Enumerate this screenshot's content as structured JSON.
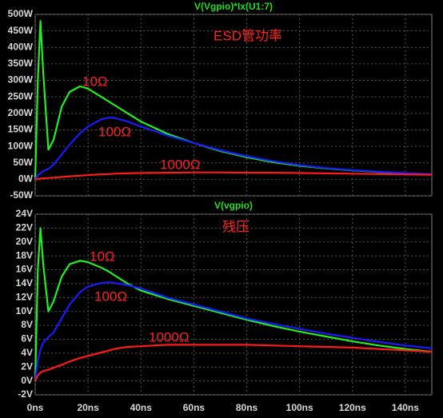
{
  "chart_data": [
    {
      "type": "line",
      "title": "V(Vgpio)*Ix(U1:7)",
      "title_color": "#22dd22",
      "annotations": [
        "ESD管功率"
      ],
      "annotation_color": "#ff2020",
      "x": [
        0,
        1,
        2,
        3,
        5,
        7,
        10,
        13,
        17,
        20,
        25,
        28,
        30,
        35,
        40,
        50,
        60,
        70,
        80,
        90,
        100,
        110,
        120,
        130,
        140,
        150
      ],
      "xlim": [
        0,
        150
      ],
      "ylim": [
        -50,
        500
      ],
      "yticks": [
        {
          "value": -50,
          "label": "-50W"
        },
        {
          "value": 0,
          "label": "0W"
        },
        {
          "value": 50,
          "label": "50W"
        },
        {
          "value": 100,
          "label": "100W"
        },
        {
          "value": 150,
          "label": "150W"
        },
        {
          "value": 200,
          "label": "200W"
        },
        {
          "value": 250,
          "label": "250W"
        },
        {
          "value": 300,
          "label": "300W"
        },
        {
          "value": 350,
          "label": "350W"
        },
        {
          "value": 400,
          "label": "400W"
        },
        {
          "value": 450,
          "label": "450W"
        },
        {
          "value": 500,
          "label": "500W"
        }
      ],
      "grid": true,
      "series": [
        {
          "name": "10Ω",
          "color": "#22ee22",
          "label_color": "#ff2020",
          "values": [
            0,
            300,
            480,
            330,
            90,
            120,
            220,
            265,
            282,
            275,
            250,
            235,
            225,
            200,
            175,
            138,
            110,
            86,
            67,
            52,
            41,
            33,
            27,
            22,
            18,
            15
          ]
        },
        {
          "name": "100Ω",
          "color": "#1a1aff",
          "label_color": "#ff2020",
          "values": [
            0,
            12,
            18,
            25,
            32,
            45,
            75,
            105,
            140,
            160,
            182,
            187,
            186,
            175,
            160,
            133,
            110,
            88,
            70,
            55,
            43,
            34,
            28,
            23,
            19,
            16
          ]
        },
        {
          "name": "1000Ω",
          "color": "#ff1a1a",
          "label_color": "#ff2020",
          "values": [
            0,
            1,
            2,
            3,
            4,
            5,
            7,
            9,
            11,
            13,
            15,
            16,
            17,
            18,
            19,
            20,
            21,
            21,
            20,
            20,
            19,
            18,
            17,
            16,
            15,
            14
          ]
        }
      ]
    },
    {
      "type": "line",
      "title": "V(vgpio)",
      "title_color": "#22dd22",
      "annotations": [
        "残压"
      ],
      "annotation_color": "#ff2020",
      "x": [
        0,
        1,
        2,
        3,
        5,
        7,
        10,
        13,
        17,
        20,
        25,
        28,
        30,
        35,
        40,
        50,
        60,
        70,
        80,
        90,
        100,
        110,
        120,
        130,
        140,
        150
      ],
      "xlim": [
        0,
        150
      ],
      "xticks": [
        {
          "value": 0,
          "label": "0ns"
        },
        {
          "value": 20,
          "label": "20ns"
        },
        {
          "value": 40,
          "label": "40ns"
        },
        {
          "value": 60,
          "label": "60ns"
        },
        {
          "value": 80,
          "label": "80ns"
        },
        {
          "value": 100,
          "label": "100ns"
        },
        {
          "value": 120,
          "label": "120ns"
        },
        {
          "value": 140,
          "label": "140ns"
        }
      ],
      "ylim": [
        -2,
        24
      ],
      "yticks": [
        {
          "value": -2,
          "label": "-2V"
        },
        {
          "value": 0,
          "label": "0V"
        },
        {
          "value": 2,
          "label": "2V"
        },
        {
          "value": 4,
          "label": "4V"
        },
        {
          "value": 6,
          "label": "6V"
        },
        {
          "value": 8,
          "label": "8V"
        },
        {
          "value": 10,
          "label": "10V"
        },
        {
          "value": 12,
          "label": "12V"
        },
        {
          "value": 14,
          "label": "14V"
        },
        {
          "value": 16,
          "label": "16V"
        },
        {
          "value": 18,
          "label": "18V"
        },
        {
          "value": 20,
          "label": "20V"
        },
        {
          "value": 22,
          "label": "22V"
        },
        {
          "value": 24,
          "label": "24V"
        }
      ],
      "grid": true,
      "series": [
        {
          "name": "10Ω",
          "color": "#22ee22",
          "label_color": "#ff2020",
          "values": [
            0,
            16,
            22,
            17,
            10,
            11.5,
            15,
            16.8,
            17.3,
            17.1,
            16.3,
            15.7,
            15.2,
            14,
            13,
            11.8,
            10.8,
            9.8,
            8.8,
            7.9,
            7.1,
            6.4,
            5.7,
            5.1,
            4.6,
            4.2
          ]
        },
        {
          "name": "100Ω",
          "color": "#1a1aff",
          "label_color": "#ff2020",
          "values": [
            0,
            3,
            4.5,
            5.5,
            6.3,
            7,
            9,
            11,
            12.8,
            13.6,
            14.1,
            14.2,
            14.1,
            13.8,
            13.3,
            12,
            11,
            10,
            9,
            8.2,
            7.5,
            6.8,
            6.2,
            5.6,
            5.1,
            4.7
          ]
        },
        {
          "name": "1000Ω",
          "color": "#ff1a1a",
          "label_color": "#ff2020",
          "values": [
            0,
            0.8,
            1.2,
            1.4,
            1.6,
            1.9,
            2.3,
            2.8,
            3.3,
            3.6,
            4.1,
            4.4,
            4.6,
            4.9,
            5,
            5.2,
            5.2,
            5.2,
            5.2,
            5.1,
            5,
            4.9,
            4.8,
            4.6,
            4.4,
            4.2
          ]
        }
      ]
    }
  ]
}
